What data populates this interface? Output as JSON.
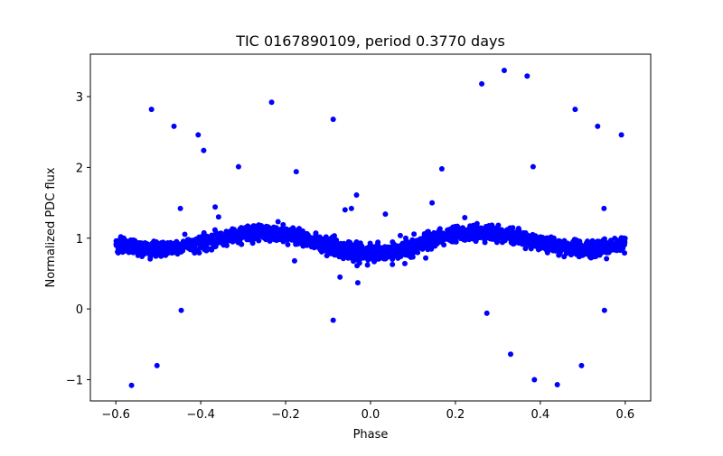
{
  "chart_data": {
    "type": "scatter",
    "title": "TIC 0167890109, period 0.3770 days",
    "xlabel": "Phase",
    "ylabel": "Normalized PDC flux",
    "xlim": [
      -0.66,
      0.66
    ],
    "ylim": [
      -1.3,
      3.6
    ],
    "xticks": [
      -0.6,
      -0.4,
      -0.2,
      0.0,
      0.2,
      0.4,
      0.6
    ],
    "xtick_labels": [
      "−0.6",
      "−0.4",
      "−0.2",
      "0.0",
      "0.2",
      "0.4",
      "0.6"
    ],
    "yticks": [
      -1,
      0,
      1,
      2,
      3
    ],
    "ytick_labels": [
      "−1",
      "0",
      "1",
      "2",
      "3"
    ],
    "grid": false,
    "marker_color": "#0000ff",
    "model": {
      "phase_range": [
        -0.6,
        0.6
      ],
      "period_in_phase": 0.5,
      "primary_minimum_phase": 0.0,
      "primary_minimum_flux": 0.78,
      "secondary_minimum_flux": 0.85,
      "maximum_flux": 1.08,
      "scatter": 0.05,
      "n_points": 2600
    },
    "outliers": [
      {
        "x": -0.563,
        "y": -1.08
      },
      {
        "x": -0.516,
        "y": 2.82
      },
      {
        "x": -0.503,
        "y": -0.8
      },
      {
        "x": -0.463,
        "y": 2.58
      },
      {
        "x": -0.448,
        "y": 1.42
      },
      {
        "x": -0.446,
        "y": -0.02
      },
      {
        "x": -0.406,
        "y": 2.46
      },
      {
        "x": -0.393,
        "y": 2.24
      },
      {
        "x": -0.366,
        "y": 1.44
      },
      {
        "x": -0.358,
        "y": 1.3
      },
      {
        "x": -0.311,
        "y": 2.01
      },
      {
        "x": -0.233,
        "y": 2.92
      },
      {
        "x": -0.179,
        "y": 0.68
      },
      {
        "x": -0.175,
        "y": 1.94
      },
      {
        "x": -0.14,
        "y": 0.9
      },
      {
        "x": -0.088,
        "y": 2.68
      },
      {
        "x": -0.088,
        "y": -0.16
      },
      {
        "x": -0.072,
        "y": 0.45
      },
      {
        "x": -0.06,
        "y": 1.4
      },
      {
        "x": -0.03,
        "y": 0.37
      },
      {
        "x": -0.033,
        "y": 1.61
      },
      {
        "x": -0.045,
        "y": 1.42
      },
      {
        "x": 0.035,
        "y": 1.34
      },
      {
        "x": 0.13,
        "y": 0.72
      },
      {
        "x": 0.145,
        "y": 1.5
      },
      {
        "x": 0.168,
        "y": 1.98
      },
      {
        "x": 0.222,
        "y": 1.29
      },
      {
        "x": 0.262,
        "y": 3.18
      },
      {
        "x": 0.274,
        "y": -0.06
      },
      {
        "x": 0.315,
        "y": 3.37
      },
      {
        "x": 0.33,
        "y": -0.64
      },
      {
        "x": 0.369,
        "y": 3.29
      },
      {
        "x": 0.383,
        "y": 2.01
      },
      {
        "x": 0.386,
        "y": -1.0
      },
      {
        "x": 0.44,
        "y": -1.07
      },
      {
        "x": 0.482,
        "y": 2.82
      },
      {
        "x": 0.497,
        "y": -0.8
      },
      {
        "x": 0.535,
        "y": 2.58
      },
      {
        "x": 0.55,
        "y": 1.42
      },
      {
        "x": 0.551,
        "y": -0.02
      },
      {
        "x": 0.591,
        "y": 2.46
      }
    ]
  }
}
